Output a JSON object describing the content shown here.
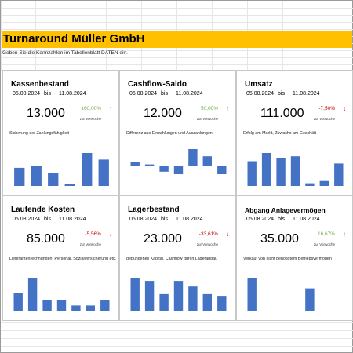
{
  "header": {
    "title": "Turnaround Müller GmbH",
    "subtitle": "Geben Sie die Kennzahlen im Tabellenblatt DATEN ein."
  },
  "colors": {
    "title_bar": "#ffc000",
    "bar": "#4472c4",
    "positive": "#70ad47",
    "negative": "#c00000"
  },
  "cards": [
    {
      "title": "Kassenbestand",
      "date_from": "05.08.2024",
      "date_sep": "bis",
      "date_to": "11.08.2024",
      "value": "13.000",
      "change": "160,00%",
      "change_label": "zur Vorwoche",
      "trend": "up",
      "trend_icon": "up-arrow-icon",
      "description": "Sicherung der Zahlungsfähigkeit",
      "bars": [
        0.55,
        0.6,
        0.4,
        0.07,
        1.0,
        0.8
      ]
    },
    {
      "title": "Cashflow-Saldo",
      "date_from": "05.08.2024",
      "date_sep": "bis",
      "date_to": "11.08.2024",
      "value": "12.000",
      "change": "50,00%",
      "change_label": "zur Vorwoche",
      "trend": "up",
      "trend_icon": "up-arrow-icon",
      "description": "Differenz aus Einzahlungen und Auszahlungen",
      "bars": [
        1.5,
        0.6,
        -1.7,
        -2.5,
        5.5,
        3.2,
        -2.5
      ]
    },
    {
      "title": "Umsatz",
      "date_from": "05.08.2024",
      "date_sep": "bis",
      "date_to": "11.08.2024",
      "value": "111.000",
      "change": "-7,50%",
      "change_label": "zur Vorwoche",
      "trend": "down",
      "trend_icon": "down-arrow-icon",
      "description": "Erfolg am Markt, Zuwachs am Geschäft",
      "bars": [
        0.75,
        1.0,
        0.85,
        0.9,
        0.08,
        0.15,
        0.68
      ]
    },
    {
      "title": "Laufende Kosten",
      "date_from": "05.08.2024",
      "date_sep": "bis",
      "date_to": "11.08.2024",
      "value": "85.000",
      "change": "-5,56%",
      "change_label": "zur Vorwoche",
      "trend": "down",
      "trend_icon": "down-arrow-icon",
      "description": "Lieferantenrechnungen, Personal, Sozialversicherung etc.",
      "bars": [
        0.55,
        1.0,
        0.35,
        0.35,
        0.18,
        0.18,
        0.35
      ]
    },
    {
      "title": "Lagerbestand",
      "date_from": "05.08.2024",
      "date_sep": "bis",
      "date_to": "11.08.2024",
      "value": "23.000",
      "change": "-33,61%",
      "change_label": "zur Vorwoche",
      "trend": "down",
      "trend_icon": "down-arrow-icon",
      "description": "gebundenes Kapital, Cashflow durch Lagerabbau",
      "bars": [
        0.95,
        0.88,
        0.5,
        0.88,
        0.72,
        0.5,
        0.45
      ]
    },
    {
      "title": "Abgang Anlagevermögen",
      "date_from": "05.08.2024",
      "date_sep": "bis",
      "date_to": "11.08.2024",
      "value": "35.000",
      "change": "16,67%",
      "change_label": "zur Vorwoche",
      "trend": "up",
      "trend_icon": "up-arrow-icon",
      "description": "Verkauf von nicht benötigtem Betriebsvermögen",
      "bars": [
        1.0,
        0,
        0,
        0,
        0.7,
        0,
        0
      ]
    }
  ]
}
